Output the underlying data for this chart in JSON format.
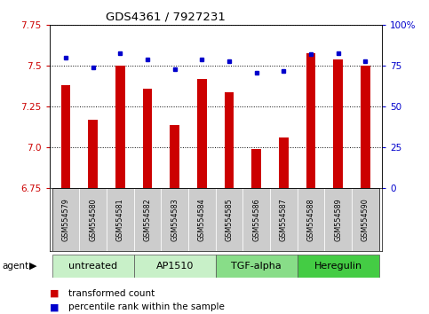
{
  "title": "GDS4361 / 7927231",
  "samples": [
    "GSM554579",
    "GSM554580",
    "GSM554581",
    "GSM554582",
    "GSM554583",
    "GSM554584",
    "GSM554585",
    "GSM554586",
    "GSM554587",
    "GSM554588",
    "GSM554589",
    "GSM554590"
  ],
  "red_values": [
    7.38,
    7.17,
    7.5,
    7.36,
    7.14,
    7.42,
    7.34,
    6.99,
    7.06,
    7.58,
    7.54,
    7.5
  ],
  "blue_values": [
    80,
    74,
    83,
    79,
    73,
    79,
    78,
    71,
    72,
    82,
    83,
    78
  ],
  "groups": [
    {
      "label": "untreated",
      "start": 0,
      "end": 3
    },
    {
      "label": "AP1510",
      "start": 3,
      "end": 6
    },
    {
      "label": "TGF-alpha",
      "start": 6,
      "end": 9
    },
    {
      "label": "Heregulin",
      "start": 9,
      "end": 12
    }
  ],
  "group_shades": [
    "#c8f0c8",
    "#c8f0c8",
    "#88dd88",
    "#44cc44"
  ],
  "ylim_left": [
    6.75,
    7.75
  ],
  "ylim_right": [
    0,
    100
  ],
  "yticks_left": [
    6.75,
    7.0,
    7.25,
    7.5,
    7.75
  ],
  "yticks_right": [
    0,
    25,
    50,
    75,
    100
  ],
  "ytick_labels_right": [
    "0",
    "25",
    "50",
    "75",
    "100%"
  ],
  "bar_color": "#cc0000",
  "dot_color": "#0000cc",
  "bar_width": 0.35,
  "background_color": "#ffffff",
  "bar_bottom": 6.75,
  "sample_bg": "#cccccc",
  "legend_items": [
    {
      "color": "#cc0000",
      "label": "transformed count"
    },
    {
      "color": "#0000cc",
      "label": "percentile rank within the sample"
    }
  ]
}
